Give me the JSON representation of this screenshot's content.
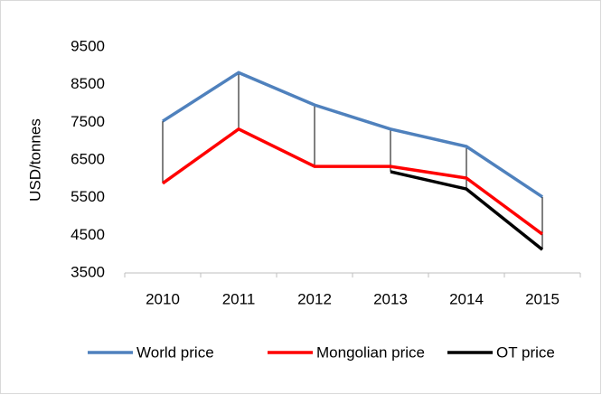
{
  "chart_data": {
    "type": "line",
    "y_label": "USD/tonnes",
    "categories": [
      "2010",
      "2011",
      "2012",
      "2013",
      "2014",
      "2015"
    ],
    "series": [
      {
        "name": "World price",
        "color": "#4f81bd",
        "values": [
          7530,
          8820,
          7960,
          7320,
          6860,
          5520
        ]
      },
      {
        "name": "Mongolian price",
        "color": "#ff0000",
        "values": [
          5880,
          7320,
          6330,
          6330,
          6020,
          4530
        ]
      },
      {
        "name": "OT price",
        "color": "#000000",
        "values": [
          null,
          null,
          null,
          6190,
          5730,
          4120
        ]
      }
    ],
    "ylim": [
      3500,
      9500
    ],
    "yticks": [
      3500,
      4500,
      5500,
      6500,
      7500,
      8500,
      9500
    ],
    "high_low_lines": true,
    "grid": false,
    "legend": "bottom"
  }
}
